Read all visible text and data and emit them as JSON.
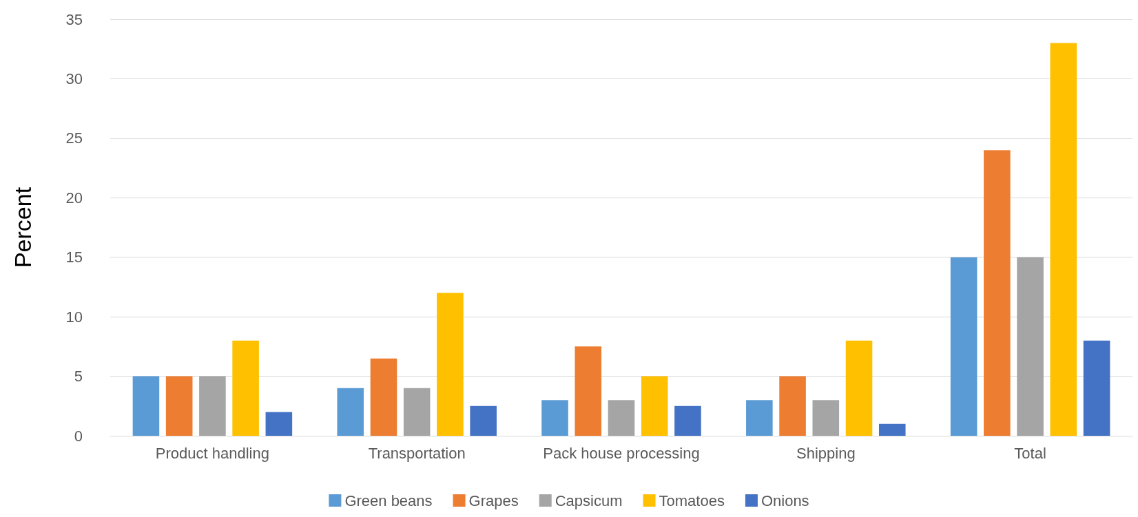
{
  "chart_data": {
    "type": "bar",
    "ylabel": "Percent",
    "categories": [
      "Product handling",
      "Transportation",
      "Pack house processing",
      "Shipping",
      "Total"
    ],
    "series": [
      {
        "name": "Green beans",
        "color": "#5b9bd5",
        "values": [
          5,
          4,
          3,
          3,
          15
        ]
      },
      {
        "name": "Grapes",
        "color": "#ed7d31",
        "values": [
          5,
          6.5,
          7.5,
          5,
          24
        ]
      },
      {
        "name": "Capsicum",
        "color": "#a5a5a5",
        "values": [
          5,
          4,
          3,
          3,
          15
        ]
      },
      {
        "name": "Tomatoes",
        "color": "#ffc000",
        "values": [
          8,
          12,
          5,
          8,
          33
        ]
      },
      {
        "name": "Onions",
        "color": "#4472c4",
        "values": [
          2,
          2.5,
          2.5,
          1,
          8
        ]
      }
    ],
    "ylim": [
      0,
      35
    ],
    "yticks": [
      0,
      5,
      10,
      15,
      20,
      25,
      30,
      35
    ],
    "grid": "y",
    "legend": "bottom"
  }
}
